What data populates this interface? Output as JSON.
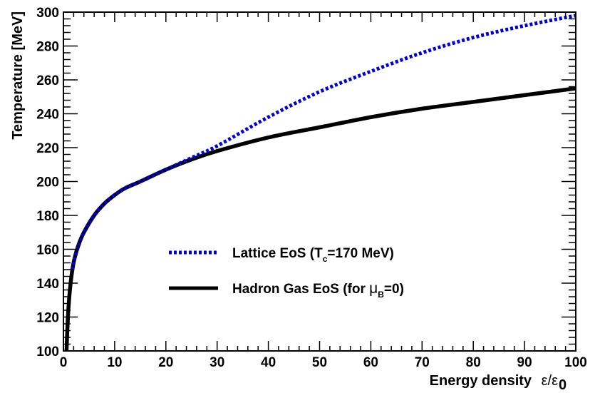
{
  "chart_data": {
    "type": "line",
    "xlabel": "Energy density",
    "xlabel_symbol": "ε/ε",
    "xlabel_symbol_sub": "0",
    "ylabel": "Temperature [MeV]",
    "xlim": [
      0,
      100
    ],
    "ylim": [
      100,
      300
    ],
    "x_ticks": [
      0,
      10,
      20,
      30,
      40,
      50,
      60,
      70,
      80,
      90,
      100
    ],
    "y_ticks": [
      100,
      120,
      140,
      160,
      180,
      200,
      220,
      240,
      260,
      280,
      300
    ],
    "grid": false,
    "legend_position": "center",
    "series": [
      {
        "name": "Lattice EoS (Tc=170 MeV)",
        "legend_main": "Lattice EoS (T",
        "legend_sub": "c",
        "legend_rest": "=170 MeV)",
        "color": "#0000cc",
        "style": "dotted",
        "x": [
          1.7,
          2.5,
          4,
          6,
          8,
          10,
          12,
          15,
          20,
          25,
          30,
          40,
          50,
          60,
          70,
          80,
          90,
          100
        ],
        "y": [
          148,
          158,
          170,
          180,
          187,
          192,
          196,
          200,
          207,
          214,
          221,
          238,
          253,
          265,
          276,
          285,
          292,
          298
        ]
      },
      {
        "name": "Hadron Gas EoS (for μB=0)",
        "legend_main": "Hadron Gas EoS (for ",
        "legend_mu": "μ",
        "legend_sub": "B",
        "legend_rest": "=0)",
        "color": "#000000",
        "style": "solid",
        "x": [
          0.6,
          0.8,
          1,
          1.3,
          1.7,
          2.2,
          3,
          4,
          6,
          8,
          10,
          12,
          15,
          20,
          25,
          30,
          40,
          50,
          60,
          70,
          80,
          90,
          100
        ],
        "y": [
          100,
          115,
          126,
          137,
          147,
          155,
          163,
          170,
          180,
          187,
          192,
          196,
          200,
          207,
          213,
          218,
          226,
          232,
          238,
          243,
          247,
          251,
          255
        ]
      }
    ]
  }
}
